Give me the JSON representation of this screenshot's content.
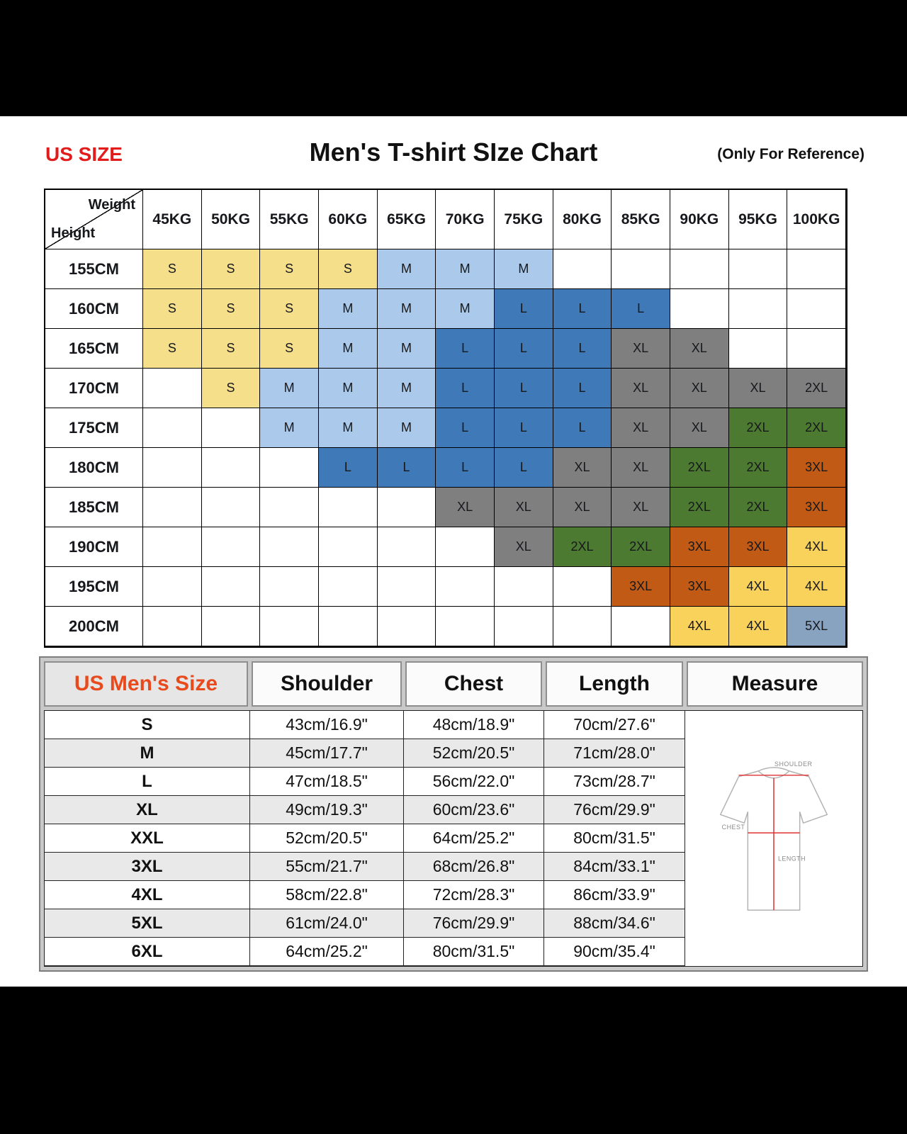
{
  "header": {
    "us_size_label": "US SIZE",
    "title": "Men's T-shirt SIze Chart",
    "reference_note": "(Only For Reference)"
  },
  "size_colors": {
    "S": "#f5df8b",
    "M": "#abc9ea",
    "L": "#3f79b8",
    "XL": "#7f7f7f",
    "2XL": "#4d7a31",
    "3XL": "#c05a14",
    "4XL": "#f9d25c",
    "5XL": "#87a3c0"
  },
  "cell_color_overrides": [
    {
      "row": 3,
      "col": 11,
      "key": "XL"
    }
  ],
  "chart_data": [
    {
      "type": "table",
      "title": "Men's T-shirt SIze Chart",
      "corner": {
        "top": "Weight",
        "bottom": "Height"
      },
      "columns": [
        "45KG",
        "50KG",
        "55KG",
        "60KG",
        "65KG",
        "70KG",
        "75KG",
        "80KG",
        "85KG",
        "90KG",
        "95KG",
        "100KG"
      ],
      "rows": [
        "155CM",
        "160CM",
        "165CM",
        "170CM",
        "175CM",
        "180CM",
        "185CM",
        "190CM",
        "195CM",
        "200CM"
      ],
      "cells": [
        [
          "S",
          "S",
          "S",
          "S",
          "M",
          "M",
          "M",
          "",
          "",
          "",
          "",
          ""
        ],
        [
          "S",
          "S",
          "S",
          "M",
          "M",
          "M",
          "L",
          "L",
          "L",
          "",
          "",
          ""
        ],
        [
          "S",
          "S",
          "S",
          "M",
          "M",
          "L",
          "L",
          "L",
          "XL",
          "XL",
          "",
          ""
        ],
        [
          "",
          "S",
          "M",
          "M",
          "M",
          "L",
          "L",
          "L",
          "XL",
          "XL",
          "XL",
          "2XL"
        ],
        [
          "",
          "",
          "M",
          "M",
          "M",
          "L",
          "L",
          "L",
          "XL",
          "XL",
          "2XL",
          "2XL"
        ],
        [
          "",
          "",
          "",
          "L",
          "L",
          "L",
          "L",
          "XL",
          "XL",
          "2XL",
          "2XL",
          "3XL"
        ],
        [
          "",
          "",
          "",
          "",
          "",
          "XL",
          "XL",
          "XL",
          "XL",
          "2XL",
          "2XL",
          "3XL"
        ],
        [
          "",
          "",
          "",
          "",
          "",
          "",
          "XL",
          "2XL",
          "2XL",
          "3XL",
          "3XL",
          "4XL"
        ],
        [
          "",
          "",
          "",
          "",
          "",
          "",
          "",
          "",
          "3XL",
          "3XL",
          "4XL",
          "4XL"
        ],
        [
          "",
          "",
          "",
          "",
          "",
          "",
          "",
          "",
          "",
          "4XL",
          "4XL",
          "5XL"
        ]
      ]
    },
    {
      "type": "table",
      "columns": [
        "US Men's Size",
        "Shoulder",
        "Chest",
        "Length",
        "Measure"
      ],
      "rows": [
        [
          "S",
          "43cm/16.9\"",
          "48cm/18.9\"",
          "70cm/27.6\""
        ],
        [
          "M",
          "45cm/17.7\"",
          "52cm/20.5\"",
          "71cm/28.0\""
        ],
        [
          "L",
          "47cm/18.5\"",
          "56cm/22.0\"",
          "73cm/28.7\""
        ],
        [
          "XL",
          "49cm/19.3\"",
          "60cm/23.6\"",
          "76cm/29.9\""
        ],
        [
          "XXL",
          "52cm/20.5\"",
          "64cm/25.2\"",
          "80cm/31.5\""
        ],
        [
          "3XL",
          "55cm/21.7\"",
          "68cm/26.8\"",
          "84cm/33.1\""
        ],
        [
          "4XL",
          "58cm/22.8\"",
          "72cm/28.3\"",
          "86cm/33.9\""
        ],
        [
          "5XL",
          "61cm/24.0\"",
          "76cm/29.9\"",
          "88cm/34.6\""
        ],
        [
          "6XL",
          "64cm/25.2\"",
          "80cm/31.5\"",
          "90cm/35.4\""
        ]
      ]
    }
  ],
  "tshirt": {
    "shoulder": "SHOULDER",
    "chest": "CHEST",
    "length": "LENGTH"
  }
}
